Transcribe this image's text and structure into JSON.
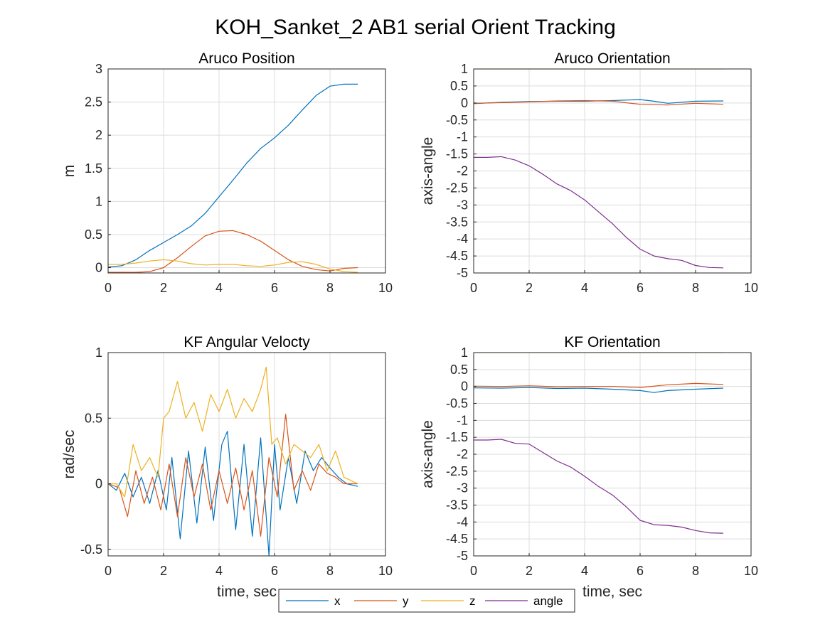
{
  "figure": {
    "title": "KOH_Sanket_2 AB1 serial Orient Tracking"
  },
  "legend": {
    "placement": "bottom-center",
    "entries": [
      {
        "label": "x",
        "color": "#0072BD"
      },
      {
        "label": "y",
        "color": "#D95319"
      },
      {
        "label": "z",
        "color": "#EDB120"
      },
      {
        "label": "angle",
        "color": "#7E2F8E"
      }
    ]
  },
  "chart_data": [
    {
      "type": "line",
      "title": "Aruco Position",
      "xlabel": "",
      "ylabel": "m",
      "xlim": [
        0,
        10
      ],
      "ylim": [
        -0.08,
        3
      ],
      "xticks": [
        0,
        2,
        4,
        6,
        8,
        10
      ],
      "yticks": [
        0,
        0.5,
        1,
        1.5,
        2,
        2.5,
        3
      ],
      "grid": true,
      "series": [
        {
          "name": "x",
          "color": "#0072BD",
          "x": [
            0,
            0.5,
            1,
            1.5,
            2,
            2.5,
            3,
            3.5,
            4,
            4.5,
            5,
            5.5,
            6,
            6.5,
            7,
            7.5,
            8,
            8.5,
            9
          ],
          "y": [
            0.01,
            0.03,
            0.12,
            0.26,
            0.38,
            0.5,
            0.63,
            0.82,
            1.07,
            1.32,
            1.58,
            1.8,
            1.96,
            2.15,
            2.38,
            2.6,
            2.74,
            2.77,
            2.77
          ]
        },
        {
          "name": "y",
          "color": "#D95319",
          "x": [
            0,
            0.5,
            1,
            1.5,
            2,
            2.5,
            3,
            3.5,
            4,
            4.5,
            5,
            5.5,
            6,
            6.5,
            7,
            7.5,
            8,
            8.5,
            9
          ],
          "y": [
            -0.07,
            -0.07,
            -0.07,
            -0.06,
            0.0,
            0.15,
            0.32,
            0.48,
            0.55,
            0.56,
            0.5,
            0.4,
            0.26,
            0.12,
            0.02,
            -0.03,
            -0.05,
            -0.01,
            0.0
          ]
        },
        {
          "name": "z",
          "color": "#EDB120",
          "x": [
            0,
            0.5,
            1,
            1.5,
            2,
            2.5,
            3,
            3.5,
            4,
            4.5,
            5,
            5.5,
            6,
            6.5,
            7,
            7.5,
            8,
            8.5,
            9
          ],
          "y": [
            0.05,
            0.05,
            0.07,
            0.1,
            0.12,
            0.1,
            0.06,
            0.04,
            0.05,
            0.05,
            0.03,
            0.02,
            0.04,
            0.08,
            0.09,
            0.05,
            -0.02,
            -0.06,
            -0.07
          ]
        }
      ]
    },
    {
      "type": "line",
      "title": "Aruco Orientation",
      "xlabel": "",
      "ylabel": "axis-angle",
      "xlim": [
        0,
        10
      ],
      "ylim": [
        -5,
        1
      ],
      "xticks": [
        0,
        2,
        4,
        6,
        8,
        10
      ],
      "yticks": [
        1,
        0.5,
        0,
        -0.5,
        -1,
        -1.5,
        -2,
        -2.5,
        -3,
        -3.5,
        -4,
        -4.5,
        -5
      ],
      "grid": true,
      "series": [
        {
          "name": "x",
          "color": "#0072BD",
          "x": [
            0,
            1,
            2,
            3,
            4,
            5,
            6,
            6.5,
            7,
            8,
            9
          ],
          "y": [
            -0.02,
            0.02,
            0.04,
            0.05,
            0.05,
            0.07,
            0.1,
            0.05,
            -0.01,
            0.05,
            0.06
          ]
        },
        {
          "name": "y",
          "color": "#D95319",
          "x": [
            0,
            1,
            2,
            3,
            4,
            5,
            6,
            7,
            8,
            9
          ],
          "y": [
            -0.01,
            0.01,
            0.03,
            0.06,
            0.07,
            0.05,
            -0.04,
            -0.06,
            -0.01,
            -0.04
          ]
        },
        {
          "name": "z",
          "color": "#EDB120",
          "x": [
            0,
            9
          ],
          "y": [
            1.0,
            1.0
          ]
        },
        {
          "name": "angle",
          "color": "#7E2F8E",
          "x": [
            0,
            0.5,
            1,
            1.5,
            2,
            2.5,
            3,
            3.5,
            4,
            4.5,
            5,
            5.5,
            6,
            6.5,
            7,
            7.5,
            8,
            8.5,
            9
          ],
          "y": [
            -1.6,
            -1.6,
            -1.58,
            -1.68,
            -1.85,
            -2.1,
            -2.38,
            -2.58,
            -2.85,
            -3.2,
            -3.55,
            -3.95,
            -4.3,
            -4.5,
            -4.58,
            -4.63,
            -4.78,
            -4.84,
            -4.85
          ]
        }
      ]
    },
    {
      "type": "line",
      "title": "KF Angular Velocty",
      "xlabel": "time, sec",
      "ylabel": "rad/sec",
      "xlim": [
        0,
        10
      ],
      "ylim": [
        -0.55,
        1
      ],
      "xticks": [
        0,
        2,
        4,
        6,
        8,
        10
      ],
      "yticks": [
        -0.5,
        0,
        0.5,
        1
      ],
      "grid": true,
      "series": [
        {
          "name": "x",
          "color": "#0072BD",
          "x": [
            0,
            0.3,
            0.6,
            0.9,
            1.2,
            1.5,
            1.8,
            2.1,
            2.3,
            2.6,
            2.9,
            3.2,
            3.5,
            3.8,
            4.1,
            4.3,
            4.6,
            4.9,
            5.2,
            5.5,
            5.8,
            6.0,
            6.2,
            6.5,
            6.8,
            7.1,
            7.4,
            7.7,
            8.0,
            8.3,
            8.6,
            9.0
          ],
          "y": [
            0.0,
            -0.05,
            0.08,
            -0.1,
            0.05,
            -0.15,
            0.1,
            -0.2,
            0.2,
            -0.42,
            0.25,
            -0.3,
            0.28,
            -0.28,
            0.3,
            0.4,
            -0.35,
            0.3,
            -0.4,
            0.35,
            -0.55,
            0.3,
            -0.2,
            0.2,
            -0.15,
            0.25,
            0.1,
            0.2,
            0.12,
            0.05,
            0.0,
            -0.02
          ]
        },
        {
          "name": "y",
          "color": "#D95319",
          "x": [
            0,
            0.4,
            0.7,
            1.0,
            1.3,
            1.6,
            1.9,
            2.2,
            2.5,
            2.8,
            3.1,
            3.4,
            3.7,
            4.0,
            4.3,
            4.6,
            4.9,
            5.2,
            5.5,
            5.8,
            6.1,
            6.4,
            6.7,
            7.0,
            7.3,
            7.6,
            7.9,
            8.2,
            8.5,
            9.0
          ],
          "y": [
            0.0,
            -0.03,
            -0.25,
            0.1,
            -0.15,
            0.05,
            -0.2,
            0.15,
            -0.25,
            0.2,
            -0.1,
            0.15,
            -0.2,
            0.1,
            -0.15,
            0.12,
            -0.2,
            0.1,
            -0.4,
            0.2,
            -0.1,
            0.53,
            -0.05,
            0.1,
            -0.05,
            0.15,
            0.08,
            0.05,
            0.0,
            0.0
          ]
        },
        {
          "name": "z",
          "color": "#EDB120",
          "x": [
            0,
            0.3,
            0.6,
            0.9,
            1.2,
            1.5,
            1.8,
            2.0,
            2.2,
            2.5,
            2.8,
            3.1,
            3.4,
            3.7,
            4.0,
            4.3,
            4.6,
            4.9,
            5.2,
            5.5,
            5.7,
            5.9,
            6.1,
            6.4,
            6.7,
            7.0,
            7.3,
            7.6,
            7.9,
            8.2,
            8.5,
            9.0
          ],
          "y": [
            0.0,
            0.0,
            -0.1,
            0.3,
            0.1,
            0.2,
            0.05,
            0.5,
            0.55,
            0.78,
            0.5,
            0.62,
            0.4,
            0.68,
            0.55,
            0.72,
            0.5,
            0.65,
            0.55,
            0.72,
            0.89,
            0.3,
            0.35,
            0.15,
            0.3,
            0.25,
            0.2,
            0.3,
            0.1,
            0.25,
            0.05,
            0.0
          ]
        }
      ]
    },
    {
      "type": "line",
      "title": "KF Orientation",
      "xlabel": "time, sec",
      "ylabel": "axis-angle",
      "xlim": [
        0,
        10
      ],
      "ylim": [
        -5,
        1
      ],
      "xticks": [
        0,
        2,
        4,
        6,
        8,
        10
      ],
      "yticks": [
        1,
        0.5,
        0,
        -0.5,
        -1,
        -1.5,
        -2,
        -2.5,
        -3,
        -3.5,
        -4,
        -4.5,
        -5
      ],
      "grid": true,
      "series": [
        {
          "name": "x",
          "color": "#0072BD",
          "x": [
            0,
            1,
            2,
            3,
            4,
            5,
            6,
            6.5,
            7,
            8,
            9
          ],
          "y": [
            -0.04,
            -0.05,
            -0.03,
            -0.06,
            -0.05,
            -0.08,
            -0.12,
            -0.18,
            -0.12,
            -0.08,
            -0.05
          ]
        },
        {
          "name": "y",
          "color": "#D95319",
          "x": [
            0,
            1,
            2,
            3,
            4,
            5,
            6,
            7,
            8,
            9
          ],
          "y": [
            0.01,
            0.0,
            0.02,
            -0.01,
            0.0,
            0.0,
            -0.03,
            0.05,
            0.09,
            0.06
          ]
        },
        {
          "name": "z",
          "color": "#EDB120",
          "x": [
            0,
            9
          ],
          "y": [
            1.0,
            1.0
          ]
        },
        {
          "name": "angle",
          "color": "#7E2F8E",
          "x": [
            0,
            0.5,
            1,
            1.5,
            2,
            2.5,
            3,
            3.5,
            4,
            4.5,
            5,
            5.5,
            6,
            6.5,
            7,
            7.5,
            8,
            8.5,
            9
          ],
          "y": [
            -1.58,
            -1.58,
            -1.56,
            -1.68,
            -1.7,
            -1.95,
            -2.2,
            -2.38,
            -2.65,
            -2.95,
            -3.2,
            -3.55,
            -3.95,
            -4.08,
            -4.1,
            -4.15,
            -4.25,
            -4.32,
            -4.33
          ]
        }
      ]
    }
  ]
}
